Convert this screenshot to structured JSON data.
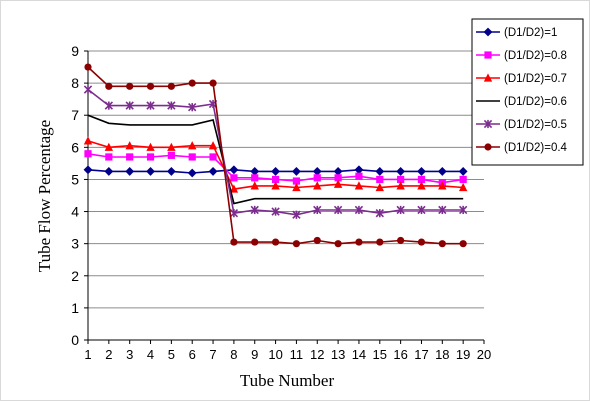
{
  "chart_data": {
    "type": "line",
    "title": "",
    "xlabel": "Tube  Number",
    "ylabel": "Tube Flow Percentage",
    "xlim": [
      1,
      20
    ],
    "ylim": [
      0,
      9
    ],
    "x_ticks": [
      "1",
      "2",
      "3",
      "4",
      "5",
      "6",
      "7",
      "8",
      "9",
      "10",
      "11",
      "12",
      "13",
      "14",
      "15",
      "16",
      "17",
      "18",
      "19",
      "20"
    ],
    "y_ticks": [
      "0",
      "1",
      "2",
      "3",
      "4",
      "5",
      "6",
      "7",
      "8",
      "9"
    ],
    "grid": "horizontal",
    "legend_position": "right",
    "series": [
      {
        "name": "(D1/D2)=1",
        "color": "#00008B",
        "marker": "diamond",
        "x": [
          1,
          2,
          3,
          4,
          5,
          6,
          7,
          8,
          9,
          10,
          11,
          12,
          13,
          14,
          15,
          16,
          17,
          18,
          19
        ],
        "values": [
          5.3,
          5.25,
          5.25,
          5.25,
          5.25,
          5.2,
          5.25,
          5.3,
          5.25,
          5.25,
          5.25,
          5.25,
          5.25,
          5.3,
          5.25,
          5.25,
          5.25,
          5.25,
          5.25
        ]
      },
      {
        "name": "(D1/D2)=0.8",
        "color": "#FF00FF",
        "marker": "square",
        "x": [
          1,
          2,
          3,
          4,
          5,
          6,
          7,
          8,
          9,
          10,
          11,
          12,
          13,
          14,
          15,
          16,
          17,
          18,
          19
        ],
        "values": [
          5.8,
          5.7,
          5.7,
          5.7,
          5.75,
          5.7,
          5.7,
          5.05,
          5.05,
          5.0,
          4.95,
          5.05,
          5.05,
          5.1,
          5.0,
          5.0,
          5.0,
          4.9,
          5.0
        ]
      },
      {
        "name": "(D1/D2)=0.7",
        "color": "#FF0000",
        "marker": "triangle",
        "x": [
          1,
          2,
          3,
          4,
          5,
          6,
          7,
          8,
          9,
          10,
          11,
          12,
          13,
          14,
          15,
          16,
          17,
          18,
          19
        ],
        "values": [
          6.2,
          6.0,
          6.05,
          6.0,
          6.0,
          6.05,
          6.05,
          4.7,
          4.8,
          4.8,
          4.75,
          4.8,
          4.85,
          4.8,
          4.75,
          4.8,
          4.8,
          4.8,
          4.75
        ]
      },
      {
        "name": "(D1/D2)=0.6",
        "color": "#000000",
        "marker": "none",
        "x": [
          1,
          2,
          3,
          4,
          5,
          6,
          7,
          8,
          9,
          10,
          11,
          12,
          13,
          14,
          15,
          16,
          17,
          18,
          19
        ],
        "values": [
          7.0,
          6.75,
          6.7,
          6.7,
          6.7,
          6.7,
          6.85,
          4.25,
          4.4,
          4.4,
          4.4,
          4.4,
          4.4,
          4.4,
          4.4,
          4.4,
          4.4,
          4.4,
          4.4
        ]
      },
      {
        "name": "(D1/D2)=0.5",
        "color": "#7B2D8E",
        "marker": "star",
        "x": [
          1,
          2,
          3,
          4,
          5,
          6,
          7,
          8,
          9,
          10,
          11,
          12,
          13,
          14,
          15,
          16,
          17,
          18,
          19
        ],
        "values": [
          7.8,
          7.3,
          7.3,
          7.3,
          7.3,
          7.25,
          7.35,
          3.95,
          4.05,
          4.0,
          3.9,
          4.05,
          4.05,
          4.05,
          3.95,
          4.05,
          4.05,
          4.05,
          4.05
        ]
      },
      {
        "name": "(D1/D2)=0.4",
        "color": "#8B0000",
        "marker": "circle",
        "x": [
          1,
          2,
          3,
          4,
          5,
          6,
          7,
          8,
          9,
          10,
          11,
          12,
          13,
          14,
          15,
          16,
          17,
          18,
          19
        ],
        "values": [
          8.5,
          7.9,
          7.9,
          7.9,
          7.9,
          8.0,
          8.0,
          3.05,
          3.05,
          3.05,
          3.0,
          3.1,
          3.0,
          3.05,
          3.05,
          3.1,
          3.05,
          3.0,
          3.0
        ]
      }
    ]
  }
}
